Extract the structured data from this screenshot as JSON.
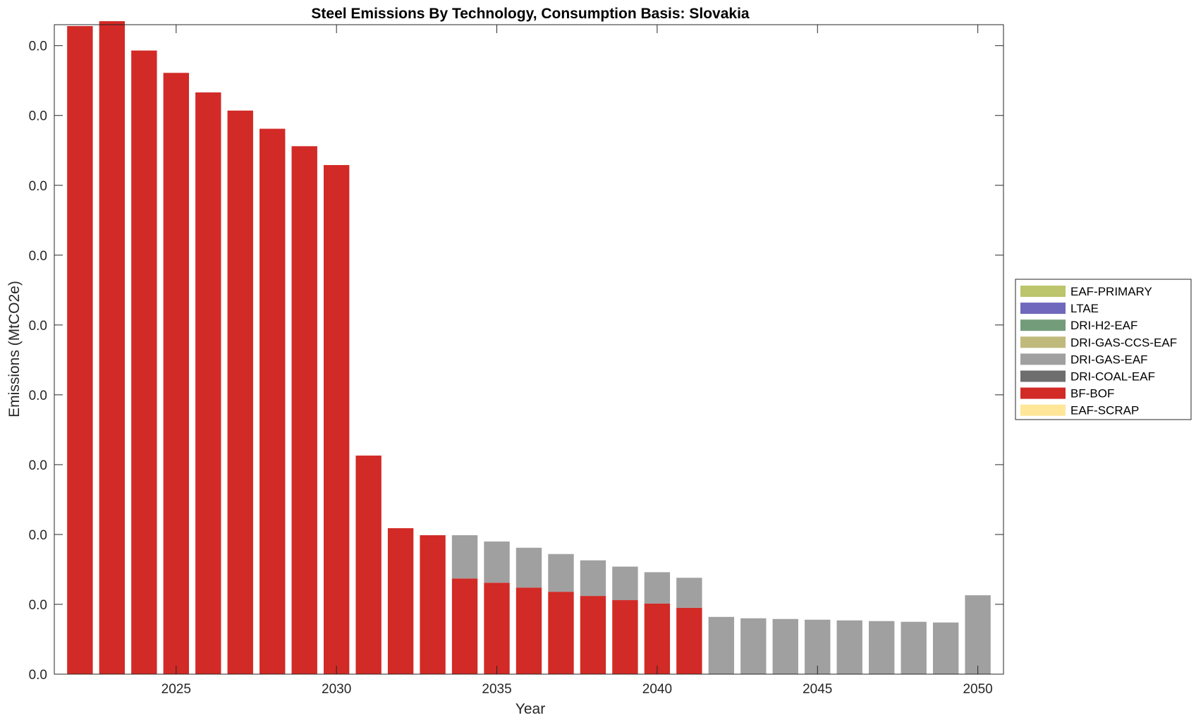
{
  "chart_data": {
    "type": "bar",
    "stacked": true,
    "title": "Steel Emissions By Technology, Consumption Basis: Slovakia",
    "xlabel": "Year",
    "ylabel": "Emissions (MtCO2e)",
    "x": [
      2022,
      2023,
      2024,
      2025,
      2026,
      2027,
      2028,
      2029,
      2030,
      2031,
      2032,
      2033,
      2034,
      2035,
      2036,
      2037,
      2038,
      2039,
      2040,
      2041,
      2042,
      2043,
      2044,
      2045,
      2046,
      2047,
      2048,
      2049,
      2050
    ],
    "xlim": [
      2021.2,
      2050.8
    ],
    "ylim": [
      0,
      0.0093
    ],
    "x_ticks": [
      2025,
      2030,
      2035,
      2040,
      2045,
      2050
    ],
    "x_tick_labels": [
      "2025",
      "2030",
      "2035",
      "2040",
      "2045",
      "2050"
    ],
    "y_ticks": [
      0,
      0.001,
      0.002,
      0.003,
      0.004,
      0.005,
      0.006,
      0.007,
      0.008,
      0.009
    ],
    "y_tick_labels": [
      "0.0",
      "0.0",
      "0.0",
      "0.0",
      "0.0",
      "0.0",
      "0.0",
      "0.0",
      "0.0",
      "0.0"
    ],
    "grid": false,
    "legend_position": "outside-right",
    "series": [
      {
        "name": "EAF-SCRAP",
        "color": "#FFE699",
        "values": [
          0,
          0,
          0,
          0,
          0,
          0,
          0,
          0,
          0,
          0,
          0,
          0,
          0,
          0,
          0,
          0,
          0,
          0,
          0,
          0,
          0,
          0,
          0,
          0,
          0,
          0,
          0,
          0,
          0
        ]
      },
      {
        "name": "BF-BOF",
        "color": "#D22A26",
        "values": [
          0.00928,
          0.00935,
          0.00893,
          0.00861,
          0.00833,
          0.00807,
          0.00781,
          0.00756,
          0.00729,
          0.00313,
          0.00209,
          0.00199,
          0.00137,
          0.00131,
          0.00124,
          0.00118,
          0.00112,
          0.00106,
          0.00101,
          0.00095,
          0,
          0,
          0,
          0,
          0,
          0,
          0,
          0,
          0
        ]
      },
      {
        "name": "DRI-COAL-EAF",
        "color": "#6E6E6E",
        "values": [
          0,
          0,
          0,
          0,
          0,
          0,
          0,
          0,
          0,
          0,
          0,
          0,
          0,
          0,
          0,
          0,
          0,
          0,
          0,
          0,
          0,
          0,
          0,
          0,
          0,
          0,
          0,
          0,
          0
        ]
      },
      {
        "name": "DRI-GAS-EAF",
        "color": "#A0A0A0",
        "values": [
          0,
          0,
          0,
          0,
          0,
          0,
          0,
          0,
          0,
          0,
          0,
          0,
          0.00062,
          0.00059,
          0.00057,
          0.00054,
          0.00051,
          0.00048,
          0.00045,
          0.00043,
          0.00082,
          0.0008,
          0.00079,
          0.00078,
          0.00077,
          0.00076,
          0.00075,
          0.00074,
          0.00113
        ]
      },
      {
        "name": "DRI-GAS-CCS-EAF",
        "color": "#C0B97C",
        "values": [
          0,
          0,
          0,
          0,
          0,
          0,
          0,
          0,
          0,
          0,
          0,
          0,
          0,
          0,
          0,
          0,
          0,
          0,
          0,
          0,
          0,
          0,
          0,
          0,
          0,
          0,
          0,
          0,
          0
        ]
      },
      {
        "name": "DRI-H2-EAF",
        "color": "#739C7B",
        "values": [
          0,
          0,
          0,
          0,
          0,
          0,
          0,
          0,
          0,
          0,
          0,
          0,
          0,
          0,
          0,
          0,
          0,
          0,
          0,
          0,
          0,
          0,
          0,
          0,
          0,
          0,
          0,
          0,
          0
        ]
      },
      {
        "name": "LTAE",
        "color": "#7068BC",
        "values": [
          0,
          0,
          0,
          0,
          0,
          0,
          0,
          0,
          0,
          0,
          0,
          0,
          0,
          0,
          0,
          0,
          0,
          0,
          0,
          0,
          0,
          0,
          0,
          0,
          0,
          0,
          0,
          0,
          0
        ]
      },
      {
        "name": "EAF-PRIMARY",
        "color": "#BCC46C",
        "values": [
          0,
          0,
          0,
          0,
          0,
          0,
          0,
          0,
          0,
          0,
          0,
          0,
          0,
          0,
          0,
          0,
          0,
          0,
          0,
          0,
          0,
          0,
          0,
          0,
          0,
          0,
          0,
          0,
          0
        ]
      }
    ],
    "legend_order": [
      "EAF-PRIMARY",
      "LTAE",
      "DRI-H2-EAF",
      "DRI-GAS-CCS-EAF",
      "DRI-GAS-EAF",
      "DRI-COAL-EAF",
      "BF-BOF",
      "EAF-SCRAP"
    ]
  }
}
